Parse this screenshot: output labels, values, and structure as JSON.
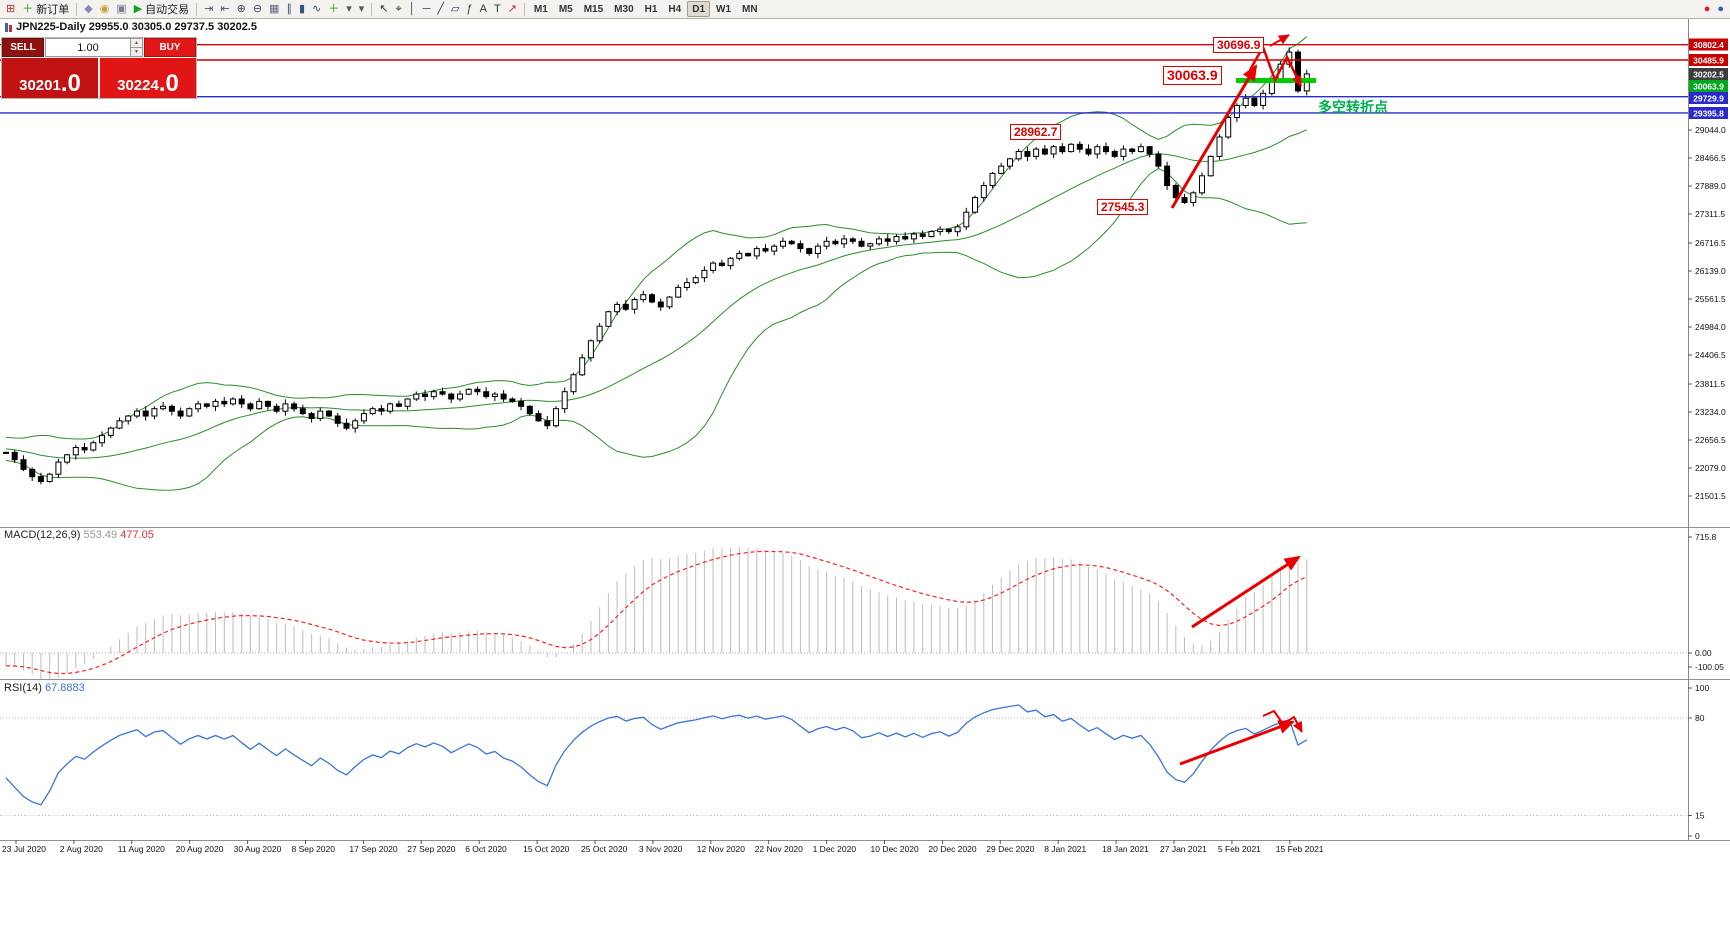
{
  "window": {
    "title": "JPN225-Daily  29955.0 30305.0 29737.5 30202.5"
  },
  "toolbar": {
    "items": [
      {
        "t": "icon",
        "name": "new-chart-icon",
        "g": "⊞",
        "c": "#b03030"
      },
      {
        "t": "button",
        "name": "new-order-button",
        "label": "新订单",
        "g": "＋",
        "c": "#2e8b2e"
      },
      {
        "t": "sep"
      },
      {
        "t": "icon",
        "name": "profiles-icon",
        "g": "◆",
        "c": "#8888c0"
      },
      {
        "t": "icon",
        "name": "alerts-icon",
        "g": "◉",
        "c": "#c0a030"
      },
      {
        "t": "icon",
        "name": "terminal-icon",
        "g": "▣",
        "c": "#7a7a9a"
      },
      {
        "t": "button",
        "name": "auto-trading-button",
        "label": "自动交易",
        "g": "▶",
        "c": "#18a018"
      },
      {
        "t": "sep"
      },
      {
        "t": "icon",
        "name": "auto-scroll-icon",
        "g": "⇥",
        "c": "#556"
      },
      {
        "t": "icon",
        "name": "chart-shift-icon",
        "g": "⇤",
        "c": "#556"
      },
      {
        "t": "icon",
        "name": "zoom-in-icon",
        "g": "⊕",
        "c": "#446"
      },
      {
        "t": "icon",
        "name": "zoom-out-icon",
        "g": "⊖",
        "c": "#446"
      },
      {
        "t": "icon",
        "name": "grid-icon",
        "g": "▦",
        "c": "#668"
      },
      {
        "t": "icon",
        "name": "bar-chart-icon",
        "g": "∥",
        "c": "#357"
      },
      {
        "t": "icon",
        "name": "candlestick-chart-icon",
        "g": "▮",
        "c": "#357"
      },
      {
        "t": "icon",
        "name": "line-chart-icon",
        "g": "∿",
        "c": "#357"
      },
      {
        "t": "icon",
        "name": "indicators-icon",
        "g": "＋",
        "c": "#18a018"
      },
      {
        "t": "icon",
        "name": "periods-dropdown-icon",
        "g": "▾",
        "c": "#555"
      },
      {
        "t": "icon",
        "name": "templates-dropdown-icon",
        "g": "▾",
        "c": "#555"
      },
      {
        "t": "sep"
      },
      {
        "t": "icon",
        "name": "cursor-icon",
        "g": "↖",
        "c": "#333"
      },
      {
        "t": "icon",
        "name": "crosshair-icon",
        "g": "⌖",
        "c": "#333"
      },
      {
        "t": "icon",
        "name": "vertical-line-icon",
        "g": "│",
        "c": "#336"
      },
      {
        "t": "icon",
        "name": "horizontal-line-icon",
        "g": "─",
        "c": "#336"
      },
      {
        "t": "icon",
        "name": "trendline-icon",
        "g": "╱",
        "c": "#336"
      },
      {
        "t": "icon",
        "name": "channel-icon",
        "g": "▱",
        "c": "#336"
      },
      {
        "t": "icon",
        "name": "fibonacci-icon",
        "g": "ƒ",
        "c": "#336"
      },
      {
        "t": "icon",
        "name": "text-icon",
        "g": "A",
        "c": "#333"
      },
      {
        "t": "icon",
        "name": "label-icon",
        "g": "T",
        "c": "#333"
      },
      {
        "t": "icon",
        "name": "arrows-icon",
        "g": "↗",
        "c": "#a33"
      },
      {
        "t": "sep"
      },
      {
        "t": "tf"
      },
      {
        "t": "spacer"
      },
      {
        "t": "icon",
        "name": "red-circle-icon",
        "g": "●",
        "c": "#d42020"
      },
      {
        "t": "icon",
        "name": "blue-circle-icon",
        "g": "●",
        "c": "#3060c0"
      }
    ],
    "timeframes": [
      "M1",
      "M5",
      "M15",
      "M30",
      "H1",
      "H4",
      "D1",
      "W1",
      "MN"
    ],
    "active_timeframe": "D1"
  },
  "trade_panel": {
    "sell_label": "SELL",
    "buy_label": "BUY",
    "volume": "1.00",
    "sell_price_main": "30201",
    "sell_price_frac": ".0",
    "buy_price_main": "30224",
    "buy_price_frac": ".0"
  },
  "main_chart": {
    "price_axis": [
      "29044.0",
      "28466.5",
      "27889.0",
      "27311.5",
      "26716.5",
      "26139.0",
      "25561.5",
      "24984.0",
      "24406.5",
      "23811.5",
      "23234.0",
      "22656.5",
      "22079.0",
      "21501.5"
    ],
    "line_labels": [
      {
        "text": "30802.4",
        "bg": "#c80000"
      },
      {
        "text": "30485.9",
        "bg": "#c80000"
      },
      {
        "text": "30202.5",
        "bg": "#3c3c3c"
      },
      {
        "text": "30063.9",
        "bg": "#00a81f"
      },
      {
        "text": "29729.9",
        "bg": "#2929cc"
      },
      {
        "text": "29395.8",
        "bg": "#2929cc"
      }
    ],
    "hlines": [
      {
        "price": 30802.4,
        "color": "#cc0000"
      },
      {
        "price": 30485.9,
        "color": "#cc0000"
      },
      {
        "price": 29729.9,
        "color": "#2929cc"
      },
      {
        "price": 29395.8,
        "color": "#2929cc"
      }
    ],
    "green_segment": {
      "price": 30063.9,
      "color": "#00cc00"
    },
    "annotations": [
      {
        "text": "30696.9"
      },
      {
        "text": "30063.9"
      },
      {
        "text": "28962.7"
      },
      {
        "text": "27545.3"
      },
      {
        "text": "多空转折点"
      }
    ]
  },
  "macd": {
    "label": "MACD(12,26,9)",
    "value_main": "553.49",
    "value_signal": "477.05",
    "axis": [
      "715.8",
      "0.00",
      "-100.05"
    ]
  },
  "rsi": {
    "label": "RSI(14)",
    "value": "67.8883",
    "axis": [
      "100",
      "80",
      "15",
      "0"
    ],
    "levels": [
      80,
      15
    ]
  },
  "dates": [
    "23 Jul 2020",
    "2 Aug 2020",
    "11 Aug 2020",
    "20 Aug 2020",
    "30 Aug 2020",
    "8 Sep 2020",
    "17 Sep 2020",
    "27 Sep 2020",
    "6 Oct 2020",
    "15 Oct 2020",
    "25 Oct 2020",
    "3 Nov 2020",
    "12 Nov 2020",
    "22 Nov 2020",
    "1 Dec 2020",
    "10 Dec 2020",
    "20 Dec 2020",
    "29 Dec 2020",
    "8 Jan 2021",
    "18 Jan 2021",
    "27 Jan 2021",
    "5 Feb 2021",
    "15 Feb 2021"
  ],
  "chart_data": {
    "type": "candlestick",
    "symbol": "JPN225",
    "timeframe": "Daily",
    "visible_range": {
      "start": "23 Jul 2020",
      "end": "16 Feb 2021"
    },
    "price_range": [
      21501.5,
      30802.4
    ],
    "current_bar": {
      "open": 29955.0,
      "high": 30305.0,
      "low": 29737.5,
      "close": 30202.5
    },
    "bid": 30201.0,
    "ask": 30224.0,
    "key_levels": [
      30802.4,
      30485.9,
      30063.9,
      29729.9,
      29395.8
    ],
    "marked_prices": [
      30696.9,
      30063.9,
      28962.7,
      27545.3
    ],
    "indicators": [
      {
        "name": "Bollinger Bands",
        "period": 20,
        "deviation": 2,
        "color": "#2e8b2e"
      },
      {
        "name": "MACD",
        "fast": 12,
        "slow": 26,
        "signal": 9,
        "main": 553.49,
        "signal_value": 477.05,
        "scale_max": 715.8,
        "scale_min": -100.05
      },
      {
        "name": "RSI",
        "period": 14,
        "value": 67.8883,
        "levels": [
          80,
          15
        ]
      }
    ],
    "warmup_closes": [
      22700,
      22650,
      22700,
      22600,
      22650,
      22550,
      22600,
      22500,
      22550,
      22450,
      22500,
      22400,
      22450,
      22350,
      22400,
      22300,
      22350,
      22300,
      22350,
      22400
    ],
    "closes": [
      22400,
      22250,
      22050,
      21900,
      21800,
      21950,
      22200,
      22350,
      22500,
      22450,
      22600,
      22750,
      22900,
      23050,
      23150,
      23250,
      23150,
      23300,
      23350,
      23250,
      23150,
      23300,
      23400,
      23350,
      23450,
      23400,
      23500,
      23400,
      23300,
      23450,
      23350,
      23250,
      23400,
      23300,
      23200,
      23100,
      23250,
      23150,
      23000,
      22900,
      23050,
      23200,
      23300,
      23250,
      23400,
      23350,
      23500,
      23600,
      23550,
      23650,
      23600,
      23500,
      23600,
      23700,
      23650,
      23550,
      23600,
      23500,
      23450,
      23350,
      23200,
      23050,
      22950,
      23300,
      23650,
      24000,
      24350,
      24700,
      25000,
      25300,
      25450,
      25350,
      25550,
      25650,
      25500,
      25400,
      25600,
      25800,
      25900,
      26000,
      26150,
      26300,
      26250,
      26400,
      26500,
      26450,
      26600,
      26550,
      26650,
      26750,
      26700,
      26600,
      26500,
      26650,
      26750,
      26700,
      26800,
      26750,
      26650,
      26700,
      26800,
      26750,
      26850,
      26800,
      26900,
      26850,
      26950,
      27000,
      26950,
      27050,
      27350,
      27650,
      27900,
      28150,
      28300,
      28450,
      28600,
      28500,
      28650,
      28550,
      28700,
      28600,
      28750,
      28650,
      28550,
      28700,
      28600,
      28500,
      28650,
      28600,
      28700,
      28550,
      28300,
      27900,
      27650,
      27550,
      27750,
      28100,
      28500,
      28900,
      29300,
      29550,
      29700,
      29550,
      29800,
      30100,
      30400,
      30650,
      29850,
      30200
    ]
  }
}
